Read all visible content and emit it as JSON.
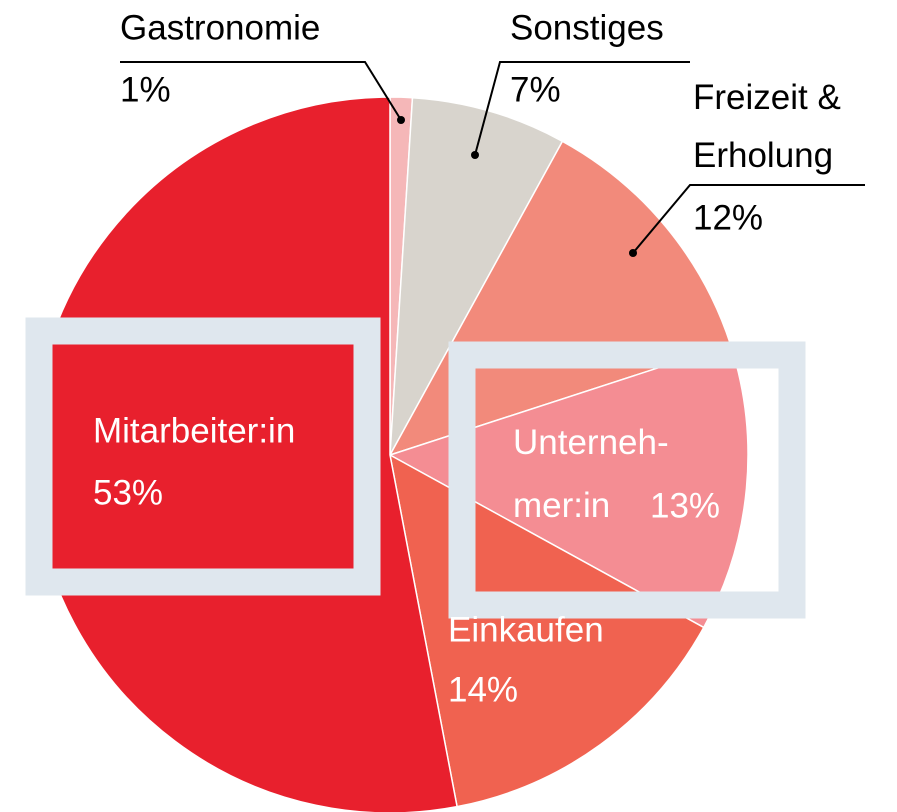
{
  "chart_data": {
    "type": "pie",
    "categories": [
      "Gastronomie",
      "Sonstiges",
      "Freizeit &\nErholung",
      "Unterneh-\nmer:in",
      "Einkaufen",
      "Mitarbeiter:in"
    ],
    "values": [
      1,
      7,
      12,
      13,
      14,
      53
    ],
    "value_labels": [
      "1%",
      "7%",
      "12%",
      "13%",
      "14%",
      "53%"
    ],
    "colors": [
      "#f5b7b8",
      "#d8d4cd",
      "#f28a7b",
      "#f48d93",
      "#f06250",
      "#e8202d"
    ]
  }
}
